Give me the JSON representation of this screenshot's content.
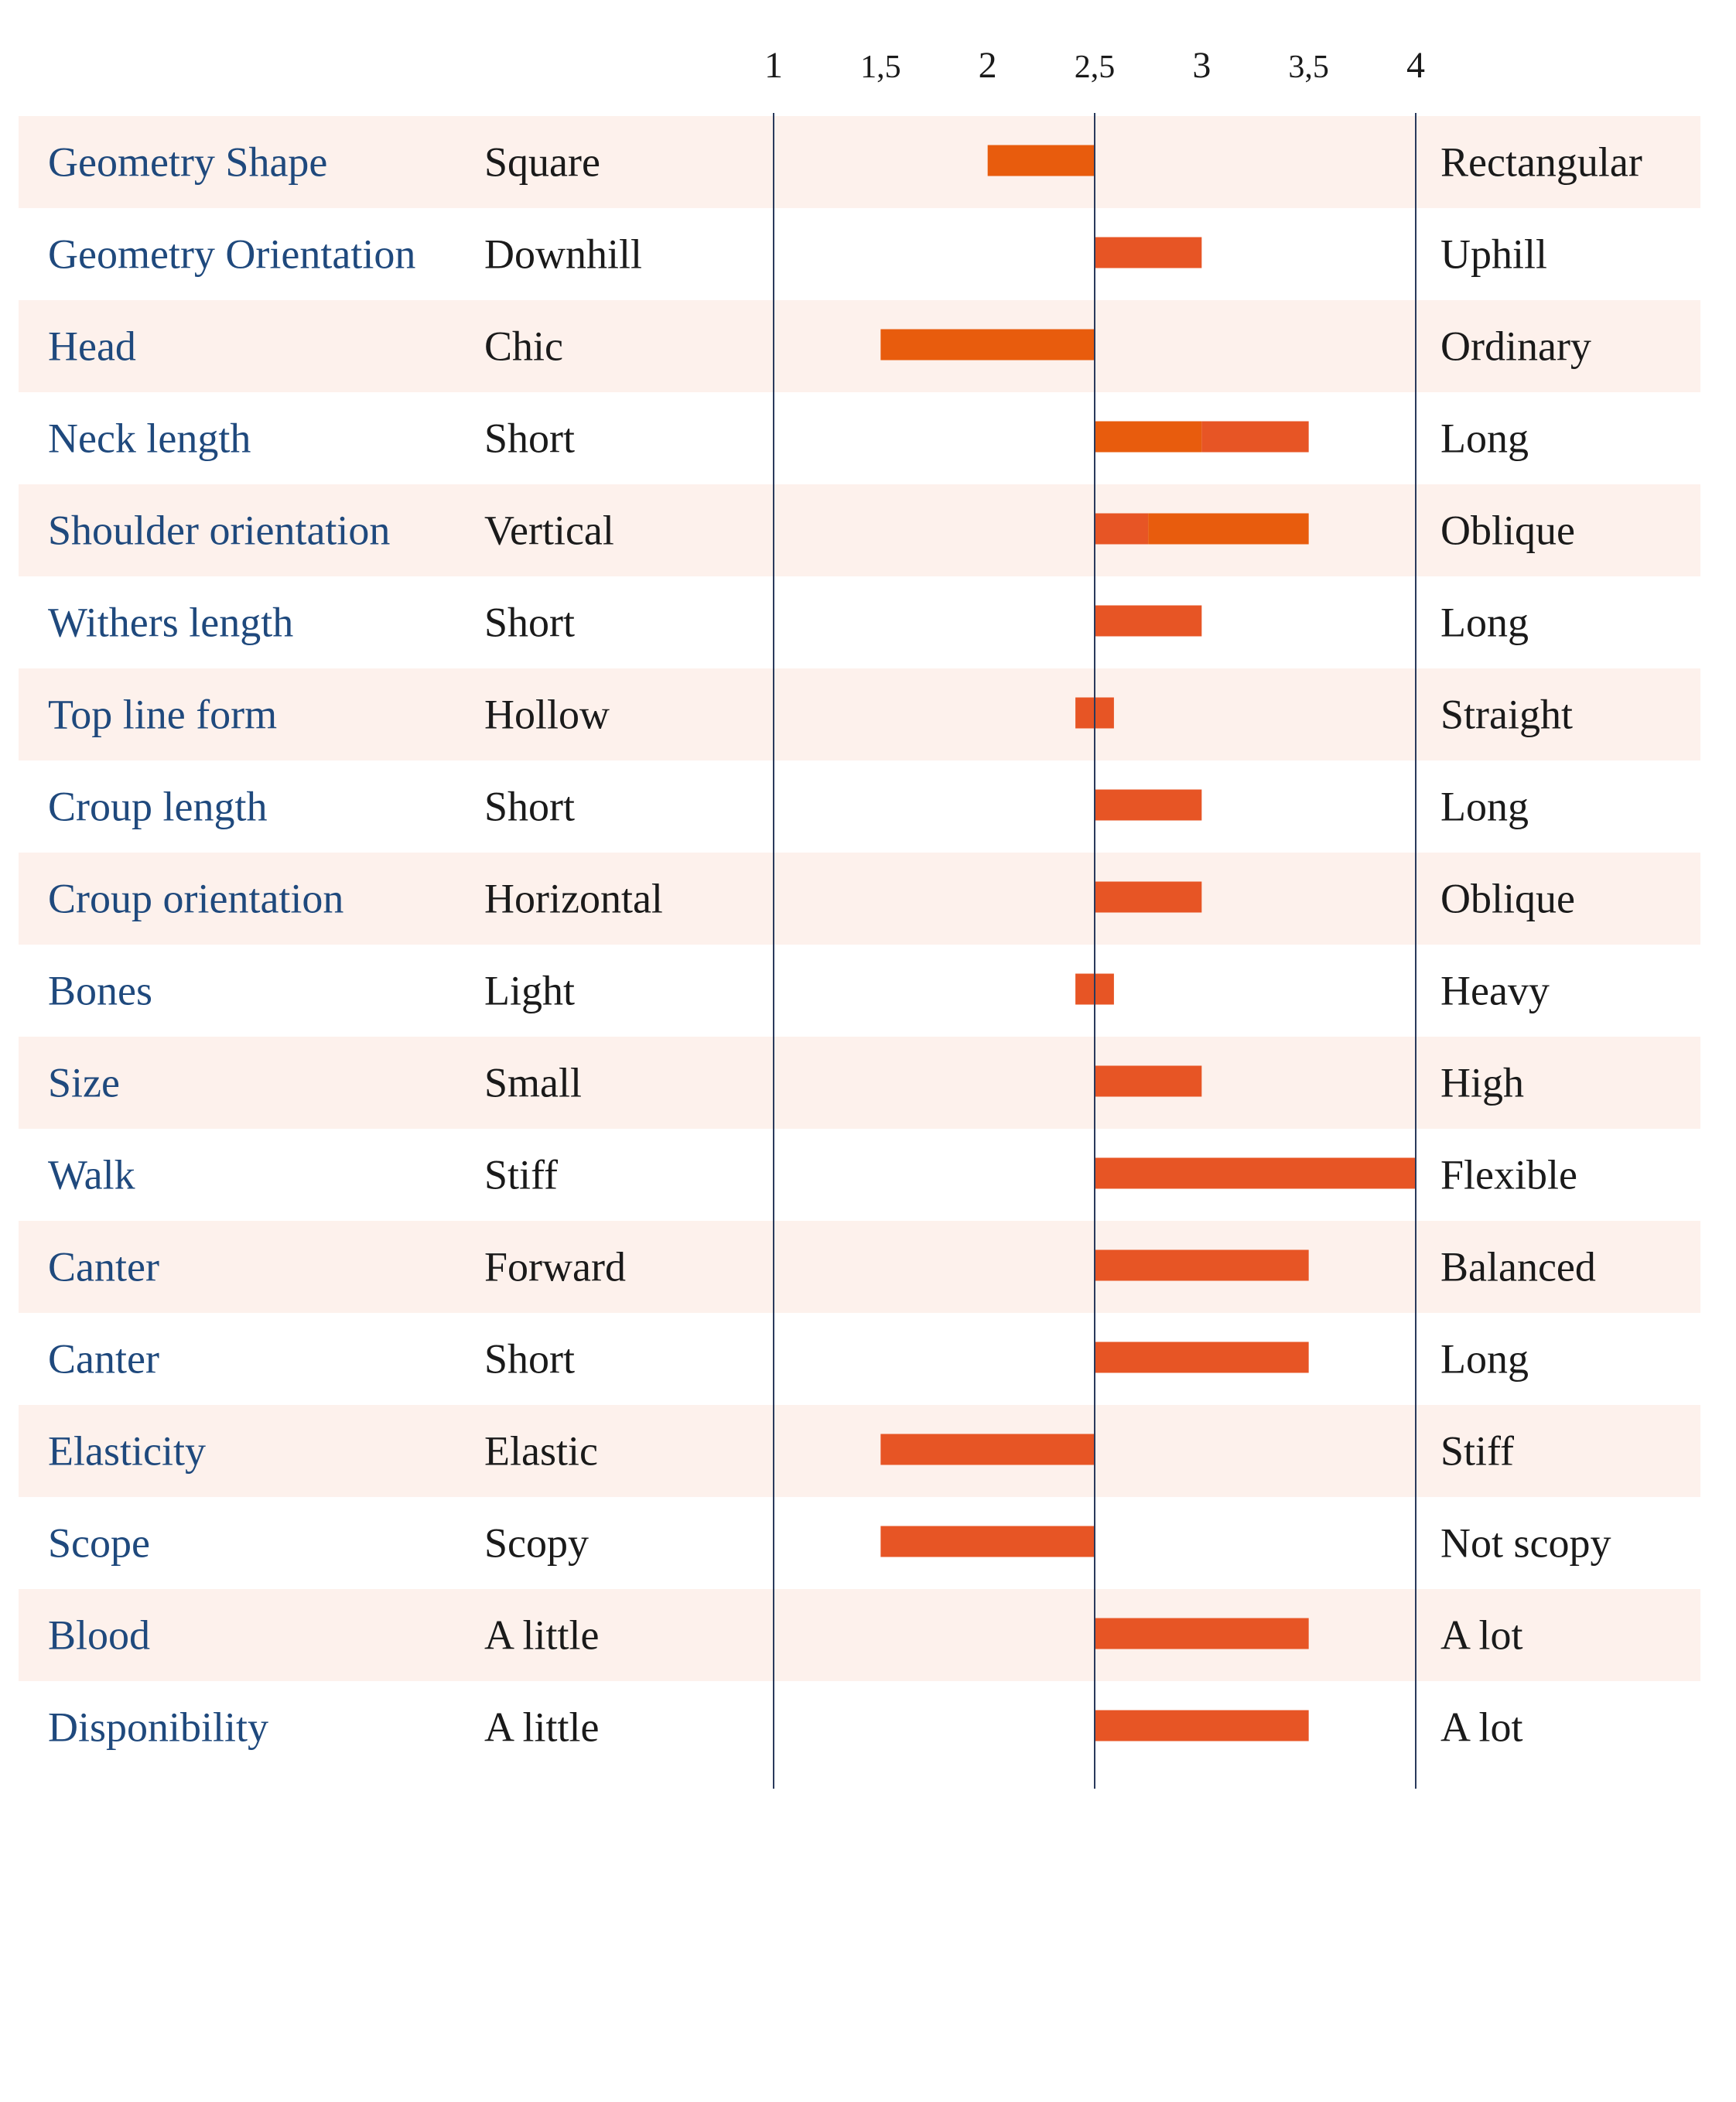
{
  "chart_data": {
    "type": "bar",
    "orientation": "horizontal",
    "baseline": 2.5,
    "xlim": [
      1,
      4
    ],
    "x_ticks": [
      "1",
      "1,5",
      "2",
      "2,5",
      "3",
      "3,5",
      "4"
    ],
    "grid": false,
    "row_banding": true,
    "rows": [
      {
        "trait": "Geometry Shape",
        "left": "Square",
        "right": "Rectangular",
        "range": [
          2.0,
          2.5
        ],
        "color": "#e85c0d"
      },
      {
        "trait": "Geometry Orientation",
        "left": "Downhill",
        "right": "Uphill",
        "range": [
          2.5,
          3.0
        ],
        "color": "#e75525"
      },
      {
        "trait": "Head",
        "left": "Chic",
        "right": "Ordinary",
        "range": [
          1.5,
          2.5
        ],
        "color": "#e85c0d"
      },
      {
        "trait": "Neck length",
        "left": "Short",
        "right": "Long",
        "range": [
          2.5,
          3.5
        ],
        "segments": [
          {
            "range": [
              2.5,
              3.0
            ],
            "color": "#e85c0d"
          },
          {
            "range": [
              3.0,
              3.5
            ],
            "color": "#e75525"
          }
        ]
      },
      {
        "trait": "Shoulder orientation",
        "left": "Vertical",
        "right": "Oblique",
        "range": [
          2.5,
          3.5
        ],
        "segments": [
          {
            "range": [
              2.5,
              2.75
            ],
            "color": "#e75525"
          },
          {
            "range": [
              2.75,
              3.5
            ],
            "color": "#e85c0d"
          }
        ]
      },
      {
        "trait": "Withers length",
        "left": "Short",
        "right": "Long",
        "range": [
          2.5,
          3.0
        ],
        "color": "#e75525"
      },
      {
        "trait": "Top line form",
        "left": "Hollow",
        "right": "Straight",
        "range": [
          2.41,
          2.59
        ],
        "color": "#e75525"
      },
      {
        "trait": "Croup length",
        "left": "Short",
        "right": "Long",
        "range": [
          2.5,
          3.0
        ],
        "color": "#e75525"
      },
      {
        "trait": "Croup orientation",
        "left": "Horizontal",
        "right": "Oblique",
        "range": [
          2.5,
          3.0
        ],
        "color": "#e75525"
      },
      {
        "trait": "Bones",
        "left": "Light",
        "right": "Heavy",
        "range": [
          2.41,
          2.59
        ],
        "color": "#e75525"
      },
      {
        "trait": "Size",
        "left": "Small",
        "right": "High",
        "range": [
          2.5,
          3.0
        ],
        "color": "#e75525"
      },
      {
        "trait": "Walk",
        "left": "Stiff",
        "right": "Flexible",
        "range": [
          2.5,
          4.0
        ],
        "color": "#e75525"
      },
      {
        "trait": "Canter",
        "left": "Forward",
        "right": "Balanced",
        "range": [
          2.5,
          3.5
        ],
        "color": "#e75525"
      },
      {
        "trait": "Canter",
        "left": "Short",
        "right": "Long",
        "range": [
          2.5,
          3.5
        ],
        "color": "#e75525"
      },
      {
        "trait": "Elasticity",
        "left": "Elastic",
        "right": "Stiff",
        "range": [
          1.5,
          2.5
        ],
        "color": "#e75525"
      },
      {
        "trait": "Scope",
        "left": "Scopy",
        "right": "Not scopy",
        "range": [
          1.5,
          2.5
        ],
        "color": "#e75525"
      },
      {
        "trait": "Blood",
        "left": "A little",
        "right": "A lot",
        "range": [
          2.5,
          3.5
        ],
        "color": "#e75525"
      },
      {
        "trait": "Disponibility",
        "left": "A little",
        "right": "A lot",
        "range": [
          2.5,
          3.5
        ],
        "color": "#e75525"
      }
    ]
  },
  "colors": {
    "band": "#fdf1ec",
    "trait_text": "#1f497d",
    "pole_text": "#1a1a1a",
    "axis_line": "#2a3a5c"
  }
}
